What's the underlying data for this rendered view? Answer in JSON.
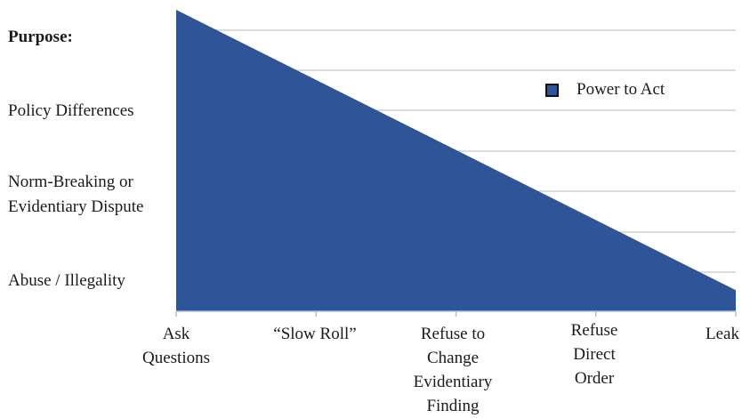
{
  "colors": {
    "fill": "#2e5597",
    "gridline": "#c8c8c8",
    "axis": "#bdbdbd"
  },
  "chart_data": {
    "type": "area",
    "title": "",
    "categories": [
      "Ask\nQuestions",
      "“Slow Roll”",
      "Refuse to\nChange\nEvidentiary\nFinding",
      "Refuse\nDirect\nOrder",
      "Leak"
    ],
    "y_categories": [
      "Purpose:",
      "Policy Differences",
      "Norm-Breaking or\nEvidentiary Dispute",
      "Abuse / Illegality"
    ],
    "series": [
      {
        "name": "Power to Act",
        "points": [
          {
            "x": "Ask\nQuestions",
            "y": 1.0
          },
          {
            "x": "Leak",
            "y": 0.07
          }
        ]
      }
    ],
    "ylim": [
      0,
      1
    ],
    "grid": true,
    "legend_position": "right"
  }
}
